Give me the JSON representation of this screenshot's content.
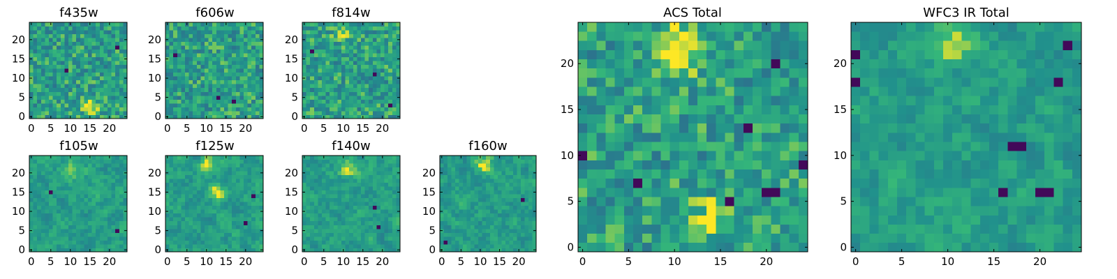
{
  "figure": {
    "panel_count": 9
  },
  "chart_data": [
    {
      "type": "heatmap",
      "title": "f435w",
      "grid": false,
      "pixels": 25,
      "xlim": [
        0,
        24
      ],
      "ylim": [
        0,
        24
      ],
      "xticks": [
        0,
        5,
        10,
        15,
        20
      ],
      "yticks": [
        0,
        5,
        10,
        15,
        20
      ],
      "colormap": "viridis",
      "colors": [
        "#440154",
        "#31688e",
        "#21918c",
        "#35b779",
        "#fde725"
      ],
      "texture": "noise",
      "bright_spots": [
        [
          15,
          3
        ]
      ],
      "dark_spots": [
        [
          22,
          18
        ],
        [
          9,
          12
        ]
      ]
    },
    {
      "type": "heatmap",
      "title": "f606w",
      "grid": false,
      "pixels": 25,
      "xlim": [
        0,
        24
      ],
      "ylim": [
        0,
        24
      ],
      "xticks": [
        0,
        5,
        10,
        15,
        20
      ],
      "yticks": [
        0,
        5,
        10,
        15,
        20
      ],
      "colormap": "viridis",
      "colors": [
        "#440154",
        "#31688e",
        "#21918c",
        "#35b779",
        "#fde725"
      ],
      "texture": "noise",
      "bright_spots": [],
      "dark_spots": [
        [
          13,
          5
        ],
        [
          17,
          4
        ],
        [
          2,
          16
        ]
      ]
    },
    {
      "type": "heatmap",
      "title": "f814w",
      "grid": false,
      "pixels": 25,
      "xlim": [
        0,
        24
      ],
      "ylim": [
        0,
        24
      ],
      "xticks": [
        0,
        5,
        10,
        15,
        20
      ],
      "yticks": [
        0,
        5,
        10,
        15,
        20
      ],
      "colormap": "viridis",
      "colors": [
        "#440154",
        "#31688e",
        "#21918c",
        "#35b779",
        "#fde725"
      ],
      "texture": "noise",
      "bright_spots": [
        [
          10,
          22
        ]
      ],
      "dark_spots": [
        [
          18,
          11
        ],
        [
          2,
          17
        ],
        [
          22,
          3
        ]
      ]
    },
    {
      "type": "heatmap",
      "title": "f105w",
      "grid": false,
      "pixels": 25,
      "xlim": [
        0,
        24
      ],
      "ylim": [
        0,
        24
      ],
      "xticks": [
        0,
        5,
        10,
        15,
        20
      ],
      "yticks": [
        0,
        5,
        10,
        15,
        20
      ],
      "colormap": "viridis",
      "colors": [
        "#440154",
        "#31688e",
        "#21918c",
        "#35b779",
        "#fde725"
      ],
      "texture": "smooth",
      "bright_spots": [
        [
          10,
          21
        ]
      ],
      "dark_spots": [
        [
          5,
          15
        ],
        [
          22,
          5
        ]
      ]
    },
    {
      "type": "heatmap",
      "title": "f125w",
      "grid": false,
      "pixels": 25,
      "xlim": [
        0,
        24
      ],
      "ylim": [
        0,
        24
      ],
      "xticks": [
        0,
        5,
        10,
        15,
        20
      ],
      "yticks": [
        0,
        5,
        10,
        15,
        20
      ],
      "colormap": "viridis",
      "colors": [
        "#440154",
        "#31688e",
        "#21918c",
        "#35b779",
        "#fde725"
      ],
      "texture": "smooth",
      "bright_spots": [
        [
          10,
          22
        ],
        [
          13,
          15
        ]
      ],
      "dark_spots": [
        [
          20,
          7
        ],
        [
          22,
          14
        ]
      ]
    },
    {
      "type": "heatmap",
      "title": "f140w",
      "grid": false,
      "pixels": 25,
      "xlim": [
        0,
        24
      ],
      "ylim": [
        0,
        24
      ],
      "xticks": [
        0,
        5,
        10,
        15,
        20
      ],
      "yticks": [
        0,
        5,
        10,
        15,
        20
      ],
      "colormap": "viridis",
      "colors": [
        "#440154",
        "#31688e",
        "#21918c",
        "#35b779",
        "#fde725"
      ],
      "texture": "smooth",
      "bright_spots": [
        [
          11,
          21
        ]
      ],
      "dark_spots": [
        [
          19,
          6
        ],
        [
          18,
          11
        ]
      ]
    },
    {
      "type": "heatmap",
      "title": "f160w",
      "grid": false,
      "pixels": 25,
      "xlim": [
        0,
        24
      ],
      "ylim": [
        0,
        24
      ],
      "xticks": [
        0,
        5,
        10,
        15,
        20
      ],
      "yticks": [
        0,
        5,
        10,
        15,
        20
      ],
      "colormap": "viridis",
      "colors": [
        "#440154",
        "#31688e",
        "#21918c",
        "#35b779",
        "#fde725"
      ],
      "texture": "smooth",
      "bright_spots": [
        [
          11,
          22
        ]
      ],
      "dark_spots": [
        [
          21,
          13
        ],
        [
          1,
          2
        ]
      ]
    },
    {
      "type": "heatmap",
      "title": "ACS Total",
      "grid": false,
      "pixels": 25,
      "xlim": [
        0,
        24
      ],
      "ylim": [
        0,
        24
      ],
      "xticks": [
        0,
        5,
        10,
        15,
        20
      ],
      "yticks": [
        0,
        5,
        10,
        15,
        20
      ],
      "colormap": "viridis",
      "colors": [
        "#440154",
        "#31688e",
        "#21918c",
        "#35b779",
        "#fde725"
      ],
      "texture": "noise",
      "bright_spots": [
        [
          10,
          21
        ],
        [
          14,
          3
        ],
        [
          11,
          22
        ]
      ],
      "dark_spots": [
        [
          21,
          20
        ],
        [
          20,
          6
        ],
        [
          21,
          6
        ],
        [
          16,
          5
        ],
        [
          18,
          13
        ],
        [
          0,
          10
        ],
        [
          6,
          7
        ],
        [
          24,
          9
        ]
      ]
    },
    {
      "type": "heatmap",
      "title": "WFC3 IR Total",
      "grid": false,
      "pixels": 25,
      "xlim": [
        0,
        24
      ],
      "ylim": [
        0,
        24
      ],
      "xticks": [
        0,
        5,
        10,
        15,
        20
      ],
      "yticks": [
        0,
        5,
        10,
        15,
        20
      ],
      "colormap": "viridis",
      "colors": [
        "#440154",
        "#31688e",
        "#21918c",
        "#35b779",
        "#fde725"
      ],
      "texture": "smooth",
      "bright_spots": [
        [
          11,
          22
        ]
      ],
      "dark_spots": [
        [
          21,
          6
        ],
        [
          20,
          6
        ],
        [
          17,
          11
        ],
        [
          18,
          11
        ],
        [
          23,
          22
        ],
        [
          0,
          18
        ],
        [
          0,
          21
        ],
        [
          22,
          18
        ],
        [
          16,
          6
        ]
      ]
    }
  ]
}
